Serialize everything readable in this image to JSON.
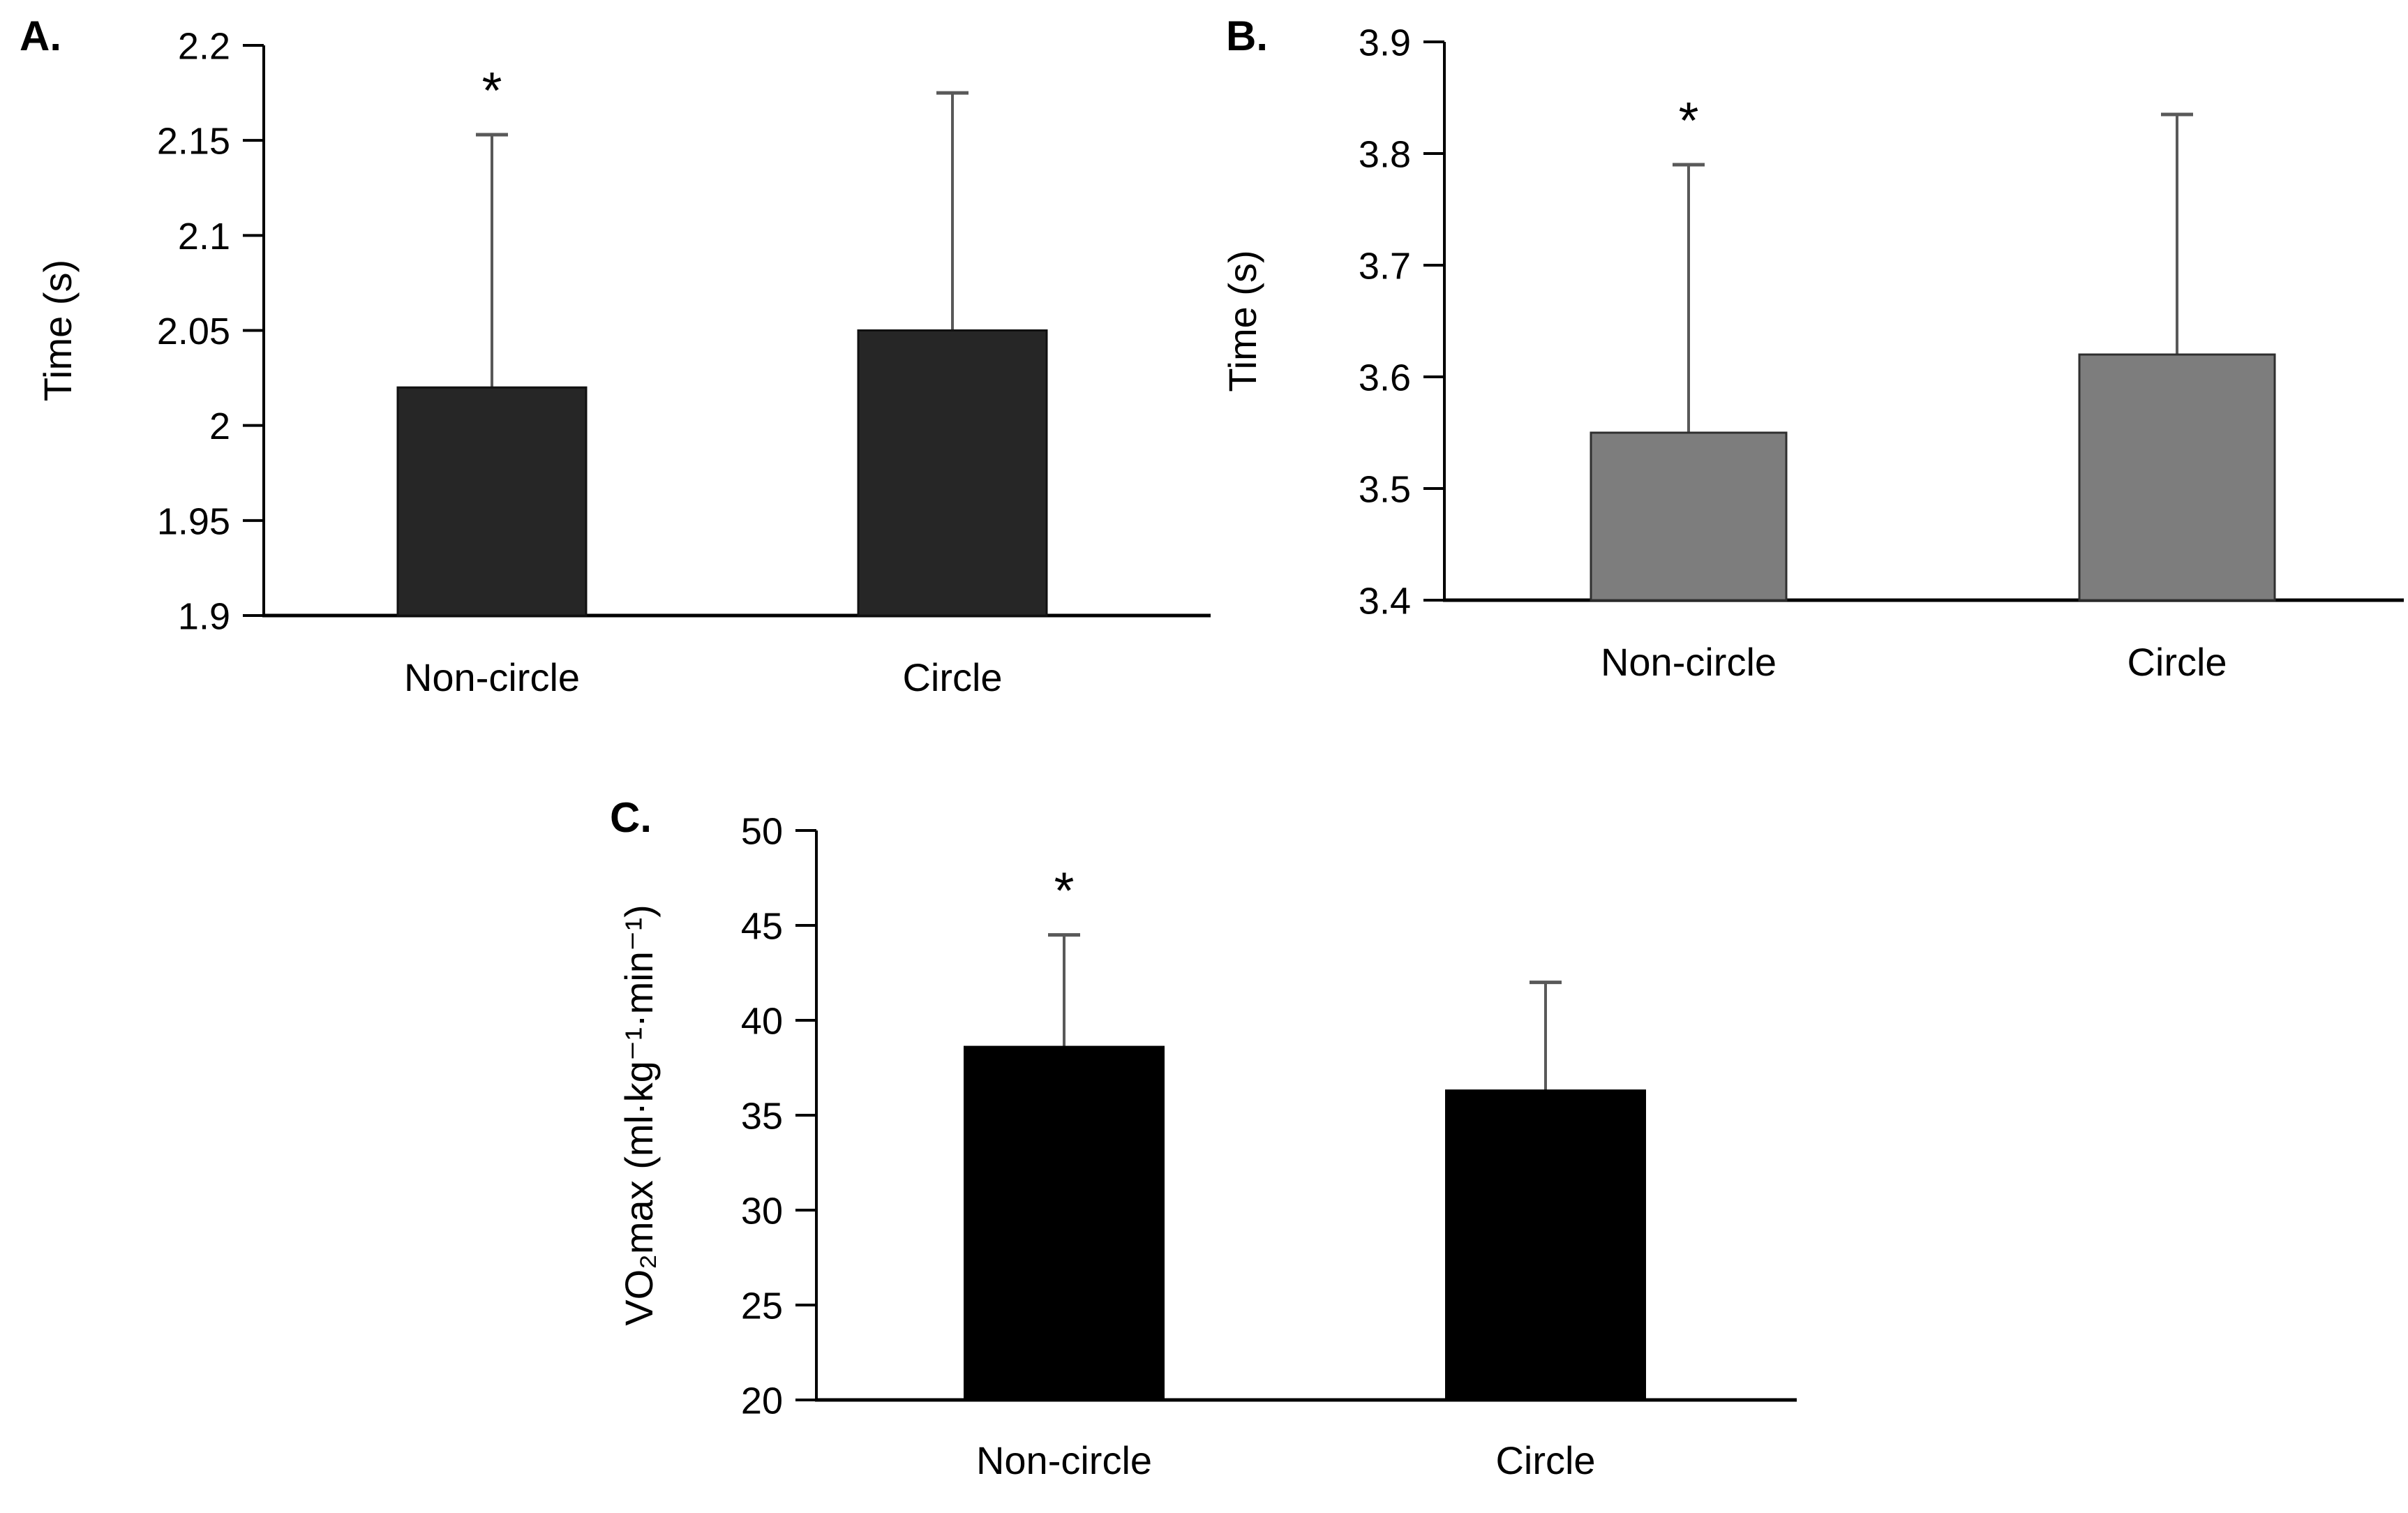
{
  "figure": {
    "background": "#ffffff",
    "axis_color": "#000000",
    "error_bar_color": "#595959",
    "significance_symbol": "*"
  },
  "chart_data": [
    {
      "id": "A",
      "type": "bar",
      "panel_label": "A.",
      "ylabel": "Time (s)",
      "xlabel": "",
      "ylim": [
        1.9,
        2.2
      ],
      "ytick_values": [
        2.2,
        2.15,
        2.1,
        2.05,
        2.0,
        1.95,
        1.9
      ],
      "ytick_labels": [
        "2.2",
        "2.15",
        "2.1",
        "2.05",
        "2",
        "1.95",
        "1.9"
      ],
      "categories": [
        "Non-circle",
        "Circle"
      ],
      "values": [
        2.02,
        2.05
      ],
      "error_tops": [
        2.153,
        2.175
      ],
      "significant_categories": [
        "Non-circle"
      ],
      "bar_fill": "#262626",
      "bar_border": "#111111",
      "grid": false,
      "legend": "none"
    },
    {
      "id": "B",
      "type": "bar",
      "panel_label": "B.",
      "ylabel": "Time (s)",
      "xlabel": "",
      "ylim": [
        3.4,
        3.9
      ],
      "ytick_values": [
        3.9,
        3.8,
        3.7,
        3.6,
        3.5,
        3.4
      ],
      "ytick_labels": [
        "3.9",
        "3.8",
        "3.7",
        "3.6",
        "3.5",
        "3.4"
      ],
      "categories": [
        "Non-circle",
        "Circle"
      ],
      "values": [
        3.55,
        3.62
      ],
      "error_tops": [
        3.79,
        3.835
      ],
      "significant_categories": [
        "Non-circle"
      ],
      "bar_fill": "#7d7d7d",
      "bar_border": "#2f2f2f",
      "grid": false,
      "legend": "none"
    },
    {
      "id": "C",
      "type": "bar",
      "panel_label": "C.",
      "ylabel": "VO₂max (ml·kg⁻¹·min⁻¹)",
      "xlabel": "",
      "ylim": [
        20,
        50
      ],
      "ytick_values": [
        50,
        45,
        40,
        35,
        30,
        25,
        20
      ],
      "ytick_labels": [
        "50",
        "45",
        "40",
        "35",
        "30",
        "25",
        "20"
      ],
      "categories": [
        "Non-circle",
        "Circle"
      ],
      "values": [
        38.6,
        36.3
      ],
      "error_tops": [
        44.5,
        42.0
      ],
      "significant_categories": [
        "Non-circle"
      ],
      "bar_fill": "#000000",
      "bar_border": "#000000",
      "grid": false,
      "legend": "none"
    }
  ]
}
